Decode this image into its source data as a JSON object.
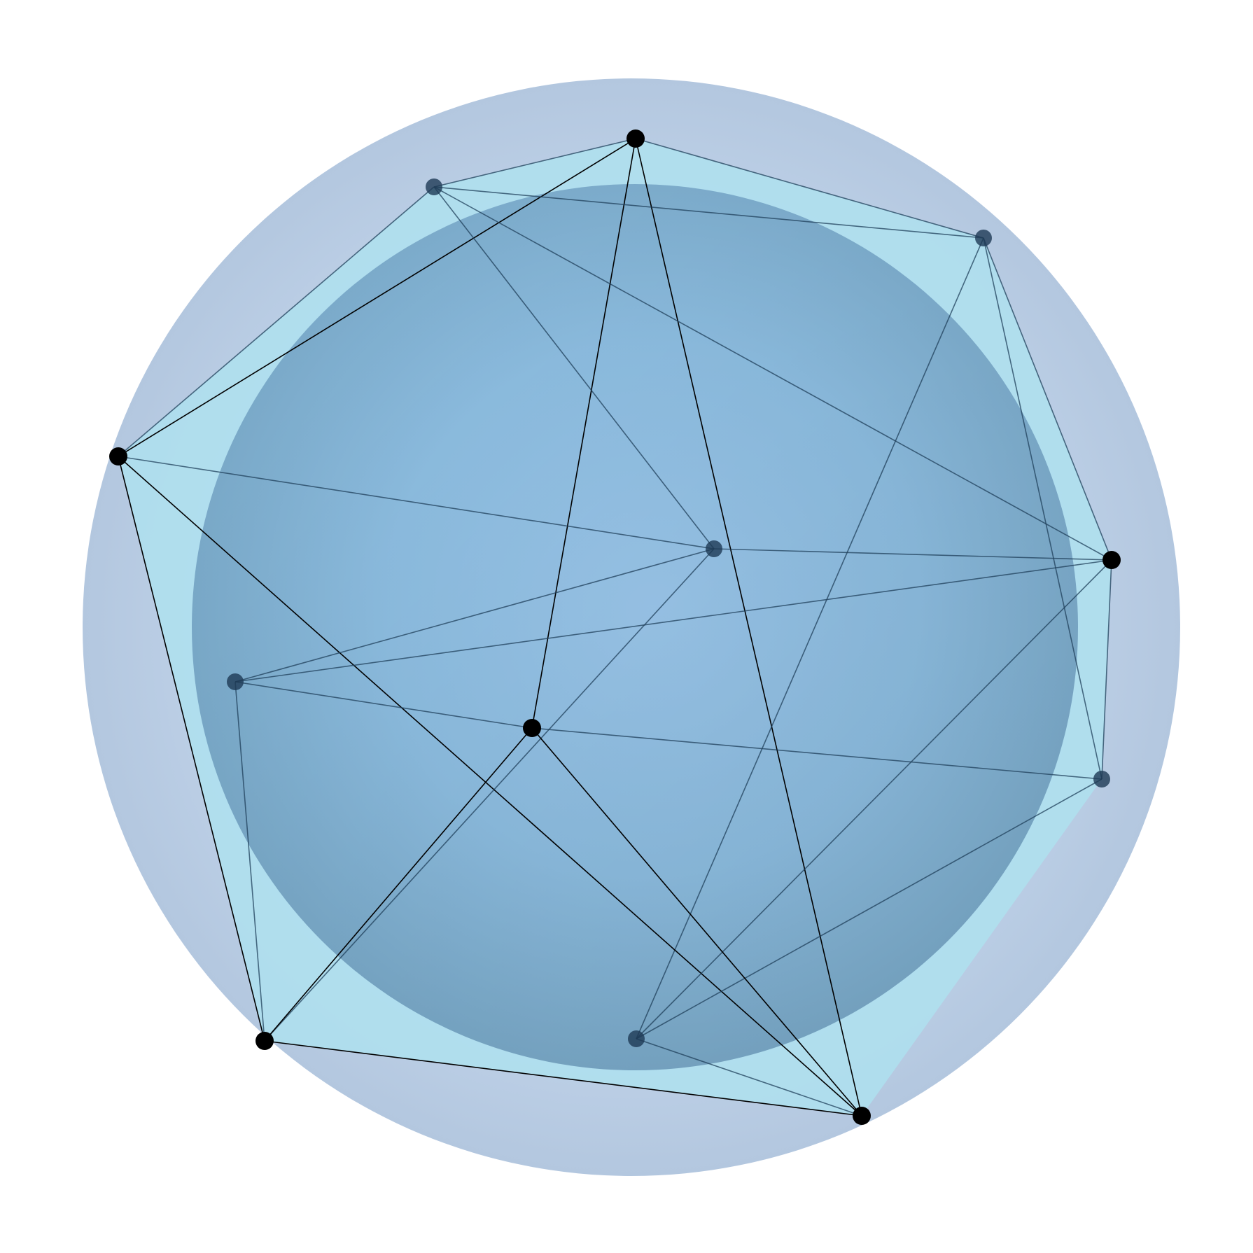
{
  "figure": {
    "type": "polyhedron-between-spheres",
    "vertex_count": 12,
    "colors": {
      "background": "#ffffff",
      "outer_sphere": "#b9cde4",
      "inner_sphere": "#8ec2e6",
      "polyhedron_face": "#aee0ee",
      "edge": "#000000",
      "vertex_front": "#000000",
      "vertex_back": "#1e3a55"
    },
    "vertices": [
      {
        "id": "v1",
        "depth": "front"
      },
      {
        "id": "v2",
        "depth": "back"
      },
      {
        "id": "v3",
        "depth": "back"
      },
      {
        "id": "v4",
        "depth": "front"
      },
      {
        "id": "v5",
        "depth": "back"
      },
      {
        "id": "v6",
        "depth": "front"
      },
      {
        "id": "v7",
        "depth": "back"
      },
      {
        "id": "v8",
        "depth": "back"
      },
      {
        "id": "v9",
        "depth": "front"
      },
      {
        "id": "v10",
        "depth": "front"
      },
      {
        "id": "v11",
        "depth": "back"
      },
      {
        "id": "v12",
        "depth": "front"
      }
    ],
    "edges": [
      [
        "v1",
        "v2"
      ],
      [
        "v1",
        "v3"
      ],
      [
        "v1",
        "v4"
      ],
      [
        "v1",
        "v9"
      ],
      [
        "v1",
        "v12"
      ],
      [
        "v2",
        "v3"
      ],
      [
        "v2",
        "v4"
      ],
      [
        "v2",
        "v5"
      ],
      [
        "v2",
        "v6"
      ],
      [
        "v3",
        "v6"
      ],
      [
        "v3",
        "v8"
      ],
      [
        "v3",
        "v11"
      ],
      [
        "v4",
        "v5"
      ],
      [
        "v4",
        "v10"
      ],
      [
        "v4",
        "v12"
      ],
      [
        "v5",
        "v6"
      ],
      [
        "v5",
        "v7"
      ],
      [
        "v5",
        "v10"
      ],
      [
        "v6",
        "v7"
      ],
      [
        "v6",
        "v8"
      ],
      [
        "v6",
        "v11"
      ],
      [
        "v7",
        "v9"
      ],
      [
        "v7",
        "v10"
      ],
      [
        "v8",
        "v9"
      ],
      [
        "v8",
        "v11"
      ],
      [
        "v9",
        "v12"
      ],
      [
        "v9",
        "v10"
      ],
      [
        "v11",
        "v12"
      ],
      [
        "v10",
        "v12"
      ]
    ]
  }
}
